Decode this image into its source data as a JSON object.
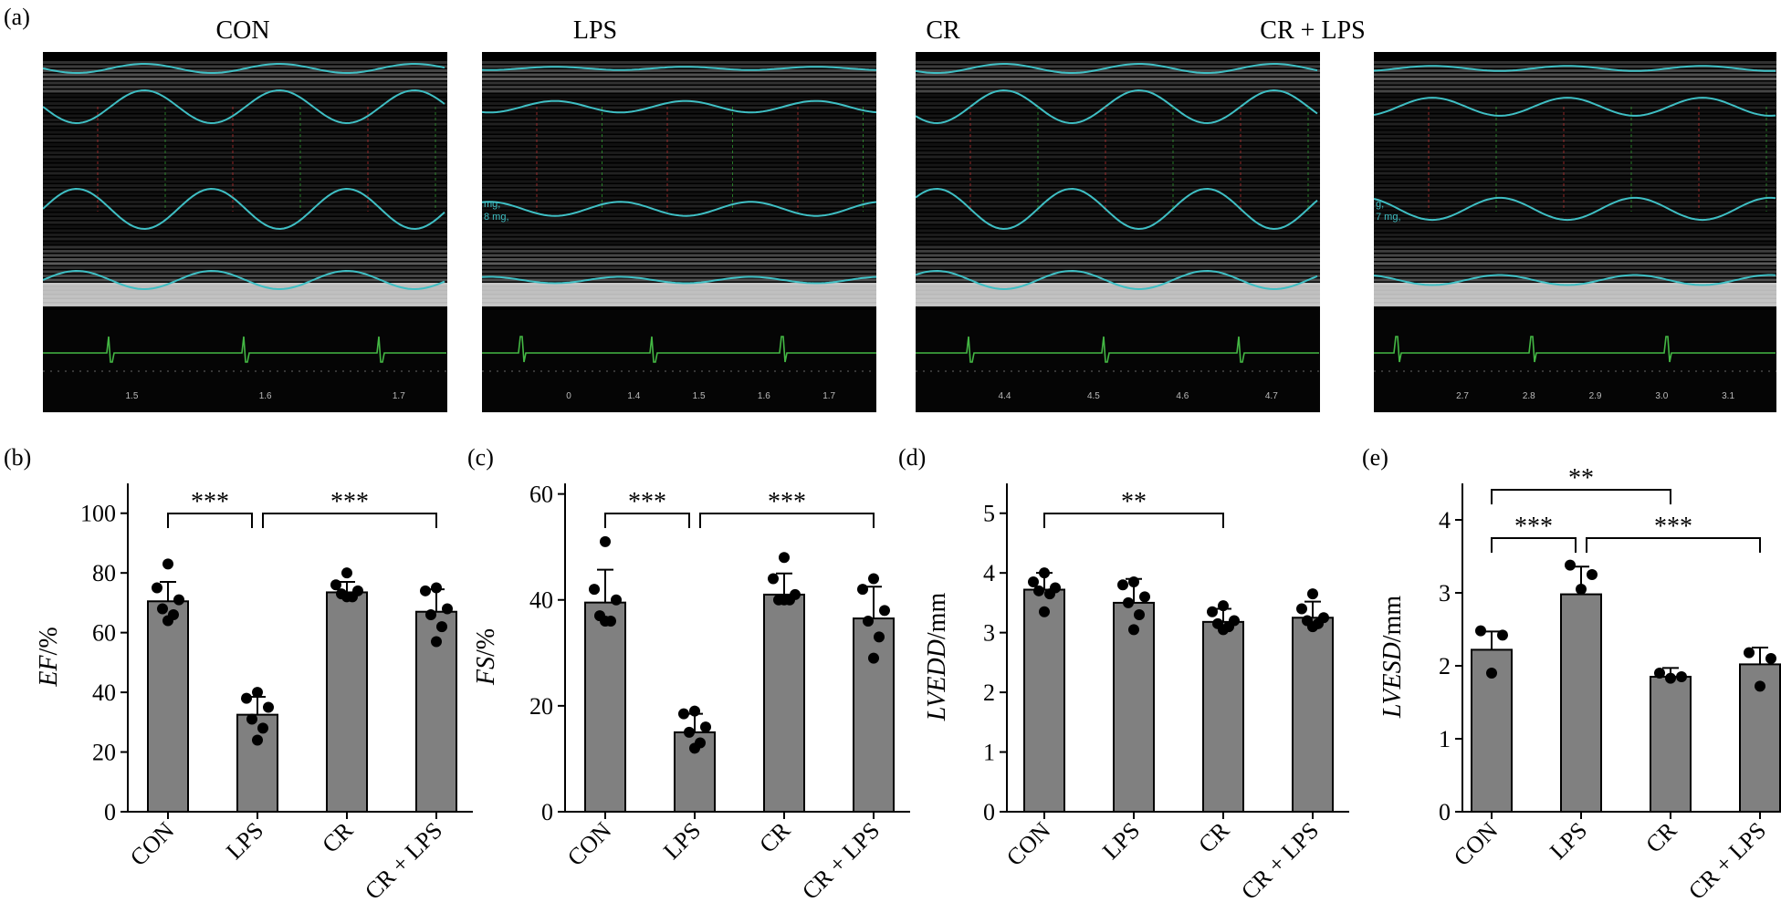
{
  "panel_a": {
    "letter": "(a)",
    "images": [
      {
        "title": "CON",
        "ticks": [
          "1.5",
          "1.6",
          "1.7"
        ],
        "side_text": []
      },
      {
        "title": "LPS",
        "ticks": [
          "0",
          "1.4",
          "1.5",
          "1.6",
          "1.7"
        ],
        "side_text": [
          "mg,",
          "8 mg,"
        ]
      },
      {
        "title": "CR",
        "ticks": [
          "4.4",
          "4.5",
          "4.6",
          "4.7"
        ],
        "side_text": []
      },
      {
        "title": "CR + LPS",
        "ticks": [
          "2.7",
          "2.8",
          "2.9",
          "3.0",
          "3.1"
        ],
        "side_text": [
          "g,",
          "7 mg,"
        ]
      }
    ]
  },
  "colors": {
    "bar_fill": "#808080",
    "bar_stroke": "#000000",
    "point": "#000000",
    "echo_trace": "#3fbfc4",
    "ecg_trace": "#44b844"
  },
  "chart_data": [
    {
      "letter": "(b)",
      "type": "bar",
      "ylabel_italic": "EF",
      "ylabel_unit": "/%",
      "ylim": [
        0,
        110
      ],
      "yticks": [
        "0",
        "20",
        "40",
        "60",
        "80",
        "100"
      ],
      "ytick_values": [
        0,
        20,
        40,
        60,
        80,
        100
      ],
      "categories": [
        "CON",
        "LPS",
        "CR",
        "CR + LPS"
      ],
      "values": [
        70.5,
        32.5,
        73.5,
        67
      ],
      "errors": [
        6.5,
        6,
        3.5,
        7.5
      ],
      "points": [
        [
          83,
          75,
          71,
          68,
          66,
          64
        ],
        [
          40,
          38,
          35,
          31,
          28,
          24
        ],
        [
          80,
          76,
          74,
          73,
          72,
          72
        ],
        [
          75,
          74,
          68,
          66,
          62,
          57
        ]
      ],
      "significance": [
        {
          "from": 0,
          "to": 1,
          "level": 1,
          "label": "***"
        },
        {
          "from": 1,
          "to": 3,
          "level": 1,
          "label": "***"
        }
      ]
    },
    {
      "letter": "(c)",
      "type": "bar",
      "ylabel_italic": "FS",
      "ylabel_unit": "/%",
      "ylim": [
        0,
        62
      ],
      "yticks": [
        "0",
        "20",
        "40",
        "60"
      ],
      "ytick_values": [
        0,
        20,
        40,
        60
      ],
      "categories": [
        "CON",
        "LPS",
        "CR",
        "CR + LPS"
      ],
      "values": [
        39.5,
        15,
        41,
        36.5
      ],
      "errors": [
        6.2,
        3.5,
        4,
        6
      ],
      "points": [
        [
          51,
          42,
          40,
          37,
          36,
          36
        ],
        [
          19,
          18.5,
          16,
          15,
          13,
          12
        ],
        [
          48,
          44,
          41,
          40,
          40,
          40
        ],
        [
          44,
          42,
          38,
          36,
          33,
          29
        ]
      ],
      "significance": [
        {
          "from": 0,
          "to": 1,
          "level": 1,
          "label": "***"
        },
        {
          "from": 1,
          "to": 3,
          "level": 1,
          "label": "***"
        }
      ]
    },
    {
      "letter": "(d)",
      "type": "bar",
      "ylabel_italic": "LVEDD",
      "ylabel_unit": "/mm",
      "ylim": [
        0,
        5.5
      ],
      "yticks": [
        "0",
        "1",
        "2",
        "3",
        "4",
        "5"
      ],
      "ytick_values": [
        0,
        1,
        2,
        3,
        4,
        5
      ],
      "categories": [
        "CON",
        "LPS",
        "CR",
        "CR + LPS"
      ],
      "values": [
        3.72,
        3.5,
        3.18,
        3.25
      ],
      "errors": [
        0.28,
        0.4,
        0.22,
        0.27
      ],
      "points": [
        [
          4.0,
          3.85,
          3.75,
          3.7,
          3.65,
          3.35
        ],
        [
          3.85,
          3.8,
          3.6,
          3.5,
          3.3,
          3.05
        ],
        [
          3.45,
          3.35,
          3.2,
          3.15,
          3.1,
          3.05
        ],
        [
          3.65,
          3.4,
          3.25,
          3.2,
          3.15,
          3.1
        ]
      ],
      "significance": [
        {
          "from": 0,
          "to": 2,
          "level": 1,
          "label": "**"
        }
      ]
    },
    {
      "letter": "(e)",
      "type": "bar",
      "ylabel_italic": "LVESD",
      "ylabel_unit": "/mm",
      "ylim": [
        0,
        4.5
      ],
      "yticks": [
        "0",
        "1",
        "2",
        "3",
        "4"
      ],
      "ytick_values": [
        0,
        1,
        2,
        3,
        4
      ],
      "categories": [
        "CON",
        "LPS",
        "CR",
        "CR + LPS"
      ],
      "values": [
        2.22,
        2.98,
        1.85,
        2.02
      ],
      "errors": [
        0.25,
        0.38,
        0.12,
        0.23
      ],
      "points": [
        [
          2.48,
          2.42,
          1.9
        ],
        [
          3.38,
          3.25,
          3.05
        ],
        [
          1.9,
          1.85,
          1.83
        ],
        [
          2.18,
          2.1,
          1.72
        ]
      ],
      "significance": [
        {
          "from": 0,
          "to": 2,
          "level": 2,
          "label": "**"
        },
        {
          "from": 0,
          "to": 1,
          "level": 1,
          "label": "***"
        },
        {
          "from": 1,
          "to": 3,
          "level": 1,
          "label": "***"
        }
      ]
    }
  ]
}
